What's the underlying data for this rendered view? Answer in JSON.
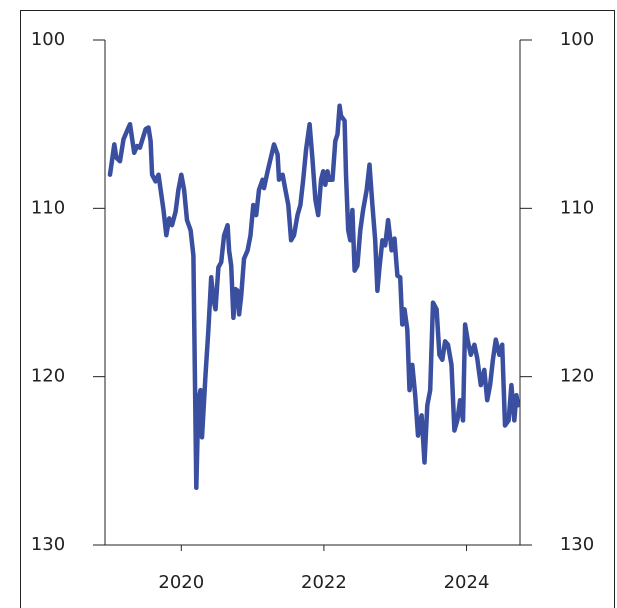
{
  "chart_data": {
    "type": "line",
    "x": [
      2019.0,
      2019.06,
      2019.09,
      2019.14,
      2019.19,
      2019.26,
      2019.28,
      2019.34,
      2019.38,
      2019.42,
      2019.5,
      2019.54,
      2019.57,
      2019.59,
      2019.64,
      2019.68,
      2019.75,
      2019.79,
      2019.83,
      2019.87,
      2019.92,
      2019.96,
      2020.0,
      2020.04,
      2020.08,
      2020.13,
      2020.17,
      2020.21,
      2020.24,
      2020.27,
      2020.29,
      2020.34,
      2020.38,
      2020.42,
      2020.45,
      2020.48,
      2020.52,
      2020.56,
      2020.6,
      2020.65,
      2020.67,
      2020.7,
      2020.73,
      2020.76,
      2020.79,
      2020.81,
      2020.84,
      2020.88,
      2020.93,
      2020.97,
      2021.01,
      2021.05,
      2021.09,
      2021.14,
      2021.16,
      2021.21,
      2021.25,
      2021.3,
      2021.35,
      2021.37,
      2021.42,
      2021.46,
      2021.5,
      2021.54,
      2021.58,
      2021.63,
      2021.67,
      2021.71,
      2021.75,
      2021.8,
      2021.84,
      2021.88,
      2021.92,
      2021.96,
      2021.99,
      2022.02,
      2022.05,
      2022.07,
      2022.12,
      2022.16,
      2022.19,
      2022.22,
      2022.24,
      2022.29,
      2022.31,
      2022.34,
      2022.37,
      2022.4,
      2022.43,
      2022.47,
      2022.51,
      2022.55,
      2022.6,
      2022.64,
      2022.68,
      2022.72,
      2022.75,
      2022.78,
      2022.82,
      2022.86,
      2022.9,
      2022.95,
      2022.99,
      2023.03,
      2023.07,
      2023.1,
      2023.13,
      2023.17,
      2023.2,
      2023.24,
      2023.28,
      2023.32,
      2023.37,
      2023.41,
      2023.45,
      2023.49,
      2023.53,
      2023.58,
      2023.62,
      2023.66,
      2023.7,
      2023.74,
      2023.79,
      2023.83,
      2023.87,
      2023.91,
      2023.95,
      2023.98,
      2024.02,
      2024.06,
      2024.11,
      2024.15,
      2024.2,
      2024.25,
      2024.29,
      2024.33,
      2024.37,
      2024.41,
      2024.46,
      2024.5,
      2024.54,
      2024.59,
      2024.63,
      2024.67,
      2024.7,
      2024.72
    ],
    "values": [
      108.0,
      106.2,
      107.0,
      107.2,
      105.9,
      105.2,
      105.0,
      106.7,
      106.3,
      106.4,
      105.3,
      105.2,
      106.0,
      108.0,
      108.4,
      108.0,
      110.1,
      111.6,
      110.6,
      111.0,
      110.2,
      108.9,
      108.0,
      108.9,
      110.7,
      111.3,
      112.8,
      126.6,
      121.4,
      120.8,
      123.6,
      119.9,
      117.2,
      114.1,
      115.4,
      116.0,
      113.5,
      113.2,
      111.6,
      111.0,
      112.5,
      113.4,
      116.5,
      114.8,
      114.9,
      116.3,
      115.2,
      113.0,
      112.5,
      111.6,
      109.8,
      110.4,
      108.9,
      108.3,
      108.8,
      107.8,
      107.1,
      106.2,
      106.8,
      108.3,
      108.0,
      108.9,
      109.8,
      111.9,
      111.6,
      110.4,
      109.8,
      108.3,
      106.5,
      105.0,
      107.1,
      109.5,
      110.4,
      108.3,
      107.8,
      108.6,
      107.8,
      108.3,
      108.3,
      106.0,
      105.6,
      103.9,
      104.5,
      104.8,
      108.0,
      111.3,
      111.9,
      110.1,
      113.7,
      113.4,
      111.3,
      110.1,
      108.9,
      107.4,
      109.8,
      111.9,
      114.9,
      113.5,
      111.9,
      112.2,
      110.7,
      112.5,
      111.8,
      114.0,
      114.1,
      116.9,
      116.0,
      117.2,
      120.8,
      119.3,
      121.1,
      123.5,
      122.3,
      125.1,
      121.7,
      120.8,
      115.6,
      116.0,
      118.7,
      119.0,
      117.9,
      118.1,
      119.3,
      123.2,
      122.6,
      121.4,
      122.6,
      116.9,
      117.9,
      118.7,
      118.1,
      118.9,
      120.5,
      119.6,
      121.4,
      120.5,
      119.0,
      117.8,
      118.7,
      118.1,
      122.9,
      122.6,
      120.5,
      122.6,
      121.1,
      121.7
    ],
    "color": "#3a4fa0",
    "xlim": [
      2018.93,
      2024.75
    ],
    "xticks": [
      2020,
      2022,
      2024
    ],
    "ylim": [
      130,
      100
    ],
    "yticks": [
      100,
      110,
      120,
      130
    ]
  }
}
